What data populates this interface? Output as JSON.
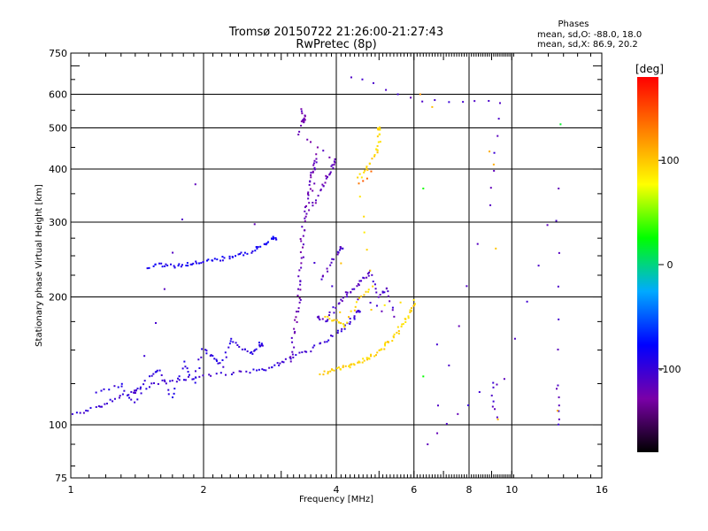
{
  "chart_data": {
    "type": "scatter",
    "title": "Tromsø 20150722 21:26:00-21:27:43",
    "subtitle": "RwPretec (8p)",
    "xlabel": "Frequency [MHz]",
    "ylabel": "Stationary phase Virtual Height [km]",
    "x_scale": "log",
    "y_scale": "log",
    "xlim": [
      1,
      16
    ],
    "ylim": [
      75,
      750
    ],
    "x_ticks": [
      1,
      2,
      4,
      6,
      8,
      10,
      16
    ],
    "y_ticks": [
      75,
      100,
      200,
      300,
      400,
      500,
      600,
      750
    ],
    "grid": true,
    "stats": {
      "header": "Phases",
      "o_line": "mean, sd,O: -88.0, 18.0",
      "x_line": "mean, sd,X:  86.9, 20.2"
    },
    "colorbar": {
      "label": "[deg]",
      "range": [
        -180,
        180
      ],
      "ticks": [
        100,
        0,
        -100
      ],
      "colormap": [
        "#000000",
        "#7a00a8",
        "#0000ff",
        "#00aaff",
        "#00ff00",
        "#ffff00",
        "#ff8000",
        "#ff0000"
      ]
    },
    "traces": [
      {
        "name_note": "o-lower",
        "phase": -100,
        "points": [
          [
            1.0,
            105
          ],
          [
            1.1,
            108
          ],
          [
            1.2,
            112
          ],
          [
            1.3,
            117
          ],
          [
            1.45,
            122
          ],
          [
            1.6,
            126
          ],
          [
            1.8,
            128
          ],
          [
            2.0,
            130
          ],
          [
            2.3,
            132
          ],
          [
            2.6,
            134
          ],
          [
            2.8,
            136
          ],
          [
            3.0,
            140
          ],
          [
            3.2,
            145
          ],
          [
            3.5,
            150
          ],
          [
            3.8,
            158
          ],
          [
            4.1,
            167
          ],
          [
            4.3,
            175
          ],
          [
            4.5,
            185
          ]
        ]
      },
      {
        "name_note": "o-lower-spread",
        "phase": -95,
        "points": [
          [
            1.15,
            118
          ],
          [
            1.3,
            125
          ],
          [
            1.4,
            112
          ],
          [
            1.5,
            130
          ],
          [
            1.6,
            135
          ],
          [
            1.7,
            115
          ],
          [
            1.8,
            140
          ],
          [
            1.9,
            125
          ],
          [
            2.0,
            150
          ],
          [
            2.1,
            145
          ],
          [
            2.2,
            138
          ],
          [
            2.3,
            160
          ],
          [
            2.45,
            150
          ],
          [
            2.6,
            148
          ],
          [
            2.7,
            155
          ]
        ]
      },
      {
        "name_note": "o-spread-F",
        "phase": -85,
        "points": [
          [
            1.5,
            235
          ],
          [
            1.6,
            238
          ],
          [
            1.7,
            236
          ],
          [
            1.8,
            238
          ],
          [
            1.9,
            240
          ],
          [
            2.0,
            242
          ],
          [
            2.15,
            245
          ],
          [
            2.3,
            248
          ],
          [
            2.45,
            252
          ],
          [
            2.6,
            258
          ],
          [
            2.75,
            265
          ],
          [
            2.9,
            275
          ]
        ]
      },
      {
        "name_note": "o-F-column",
        "phase": -120,
        "points": [
          [
            3.15,
            140
          ],
          [
            3.2,
            160
          ],
          [
            3.25,
            180
          ],
          [
            3.3,
            200
          ],
          [
            3.3,
            220
          ],
          [
            3.35,
            250
          ],
          [
            3.35,
            280
          ],
          [
            3.4,
            310
          ],
          [
            3.45,
            340
          ],
          [
            3.5,
            370
          ],
          [
            3.55,
            400
          ],
          [
            3.6,
            430
          ],
          [
            3.5,
            320
          ],
          [
            3.7,
            360
          ],
          [
            3.8,
            380
          ],
          [
            3.9,
            400
          ],
          [
            4.0,
            420
          ],
          [
            3.3,
            480
          ],
          [
            3.35,
            550
          ],
          [
            3.4,
            520
          ]
        ]
      },
      {
        "name_note": "o-F2",
        "phase": -110,
        "points": [
          [
            3.6,
            180
          ],
          [
            3.8,
            175
          ],
          [
            4.0,
            190
          ],
          [
            4.2,
            200
          ],
          [
            4.4,
            210
          ],
          [
            4.6,
            220
          ],
          [
            4.8,
            230
          ],
          [
            5.0,
            200
          ],
          [
            5.2,
            210
          ],
          [
            5.4,
            180
          ],
          [
            3.7,
            220
          ],
          [
            3.9,
            240
          ],
          [
            4.1,
            260
          ]
        ]
      },
      {
        "name_note": "x-mode",
        "phase": 95,
        "points": [
          [
            3.7,
            132
          ],
          [
            3.9,
            134
          ],
          [
            4.1,
            136
          ],
          [
            4.3,
            138
          ],
          [
            4.5,
            140
          ],
          [
            4.7,
            143
          ],
          [
            4.9,
            147
          ],
          [
            5.1,
            152
          ],
          [
            5.3,
            158
          ],
          [
            5.5,
            165
          ],
          [
            5.7,
            175
          ],
          [
            5.9,
            185
          ],
          [
            6.0,
            195
          ],
          [
            3.8,
            180
          ],
          [
            4.0,
            175
          ],
          [
            4.2,
            170
          ],
          [
            4.5,
            200
          ],
          [
            4.8,
            210
          ],
          [
            4.5,
            380
          ],
          [
            4.7,
            400
          ],
          [
            4.9,
            430
          ],
          [
            5.0,
            460
          ],
          [
            5.0,
            500
          ]
        ]
      },
      {
        "name_note": "x-mode-upper-orange",
        "phase": 140,
        "points": [
          [
            4.5,
            370
          ],
          [
            4.6,
            375
          ],
          [
            4.7,
            380
          ],
          [
            4.8,
            395
          ]
        ]
      },
      {
        "name_note": "scattered",
        "phase": -110,
        "points": [
          [
            4.3,
            660
          ],
          [
            6.3,
            580
          ],
          [
            9.4,
            575
          ],
          [
            8.9,
            330
          ],
          [
            6.4,
            90
          ],
          [
            9.0,
            125
          ],
          [
            9.2,
            105
          ],
          [
            12.7,
            360
          ],
          [
            12.7,
            125
          ],
          [
            12.8,
            100
          ],
          [
            1.9,
            370
          ],
          [
            1.4,
            120
          ]
        ]
      },
      {
        "name_note": "scattered-yellow",
        "phase": 110,
        "points": [
          [
            6.2,
            600
          ],
          [
            6.6,
            560
          ],
          [
            8.9,
            440
          ],
          [
            9.1,
            410
          ],
          [
            9.3,
            103
          ],
          [
            12.7,
            108
          ],
          [
            9.2,
            260
          ],
          [
            4.1,
            240
          ]
        ]
      },
      {
        "name_note": "scattered-cyan",
        "phase": 20,
        "points": [
          [
            12.9,
            510
          ],
          [
            6.3,
            360
          ],
          [
            6.3,
            130
          ]
        ]
      }
    ]
  }
}
